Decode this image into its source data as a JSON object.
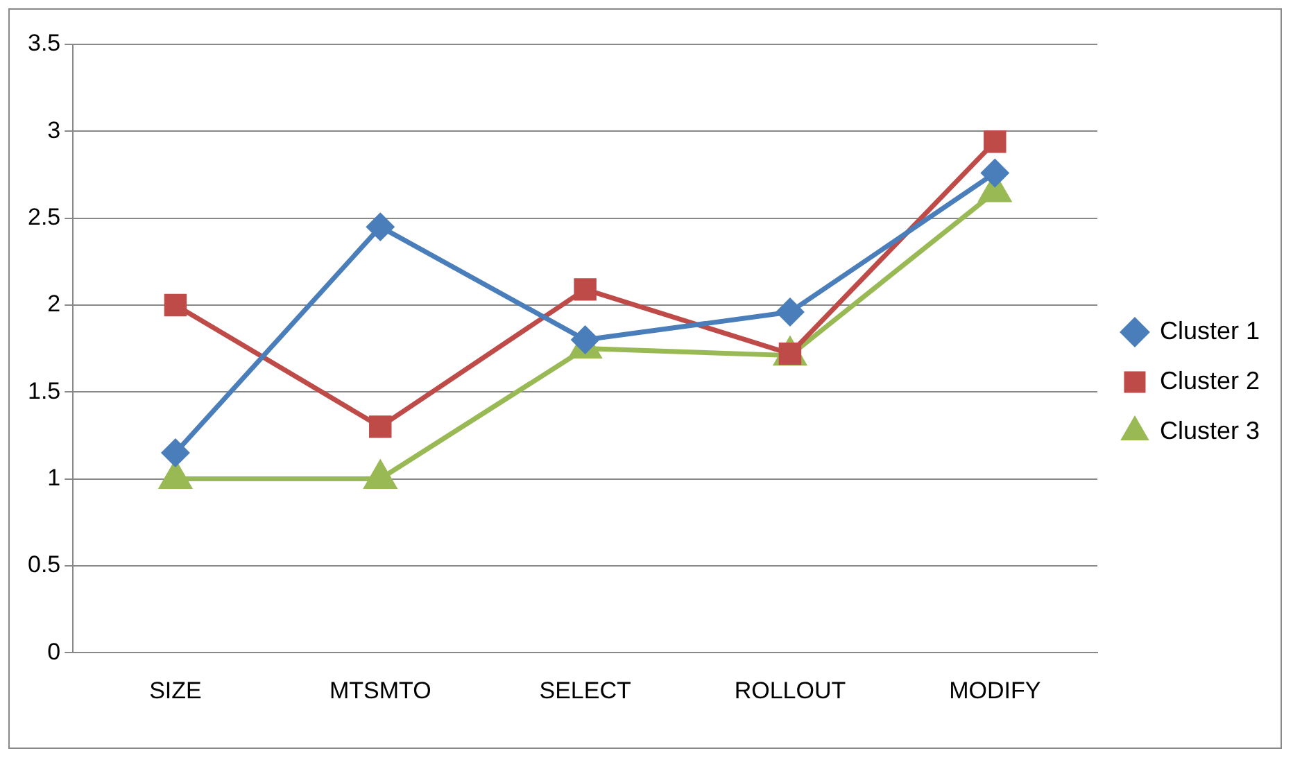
{
  "chart_data": {
    "type": "line",
    "categories": [
      "SIZE",
      "MTSMTO",
      "SELECT",
      "ROLLOUT",
      "MODIFY"
    ],
    "series": [
      {
        "name": "Cluster 1",
        "color": "#4a7ebb",
        "marker": "diamond",
        "values": [
          1.15,
          2.45,
          1.8,
          1.96,
          2.76
        ]
      },
      {
        "name": "Cluster 2",
        "color": "#be4b48",
        "marker": "square",
        "values": [
          2.0,
          1.3,
          2.09,
          1.72,
          2.94
        ]
      },
      {
        "name": "Cluster 3",
        "color": "#98b954",
        "marker": "triangle",
        "values": [
          1.0,
          1.0,
          1.75,
          1.71,
          2.65
        ]
      }
    ],
    "ylim": [
      0,
      3.5
    ],
    "yticks": [
      0,
      0.5,
      1,
      1.5,
      2,
      2.5,
      3,
      3.5
    ],
    "grid": "y",
    "legend": "right",
    "line_style": "solid"
  }
}
